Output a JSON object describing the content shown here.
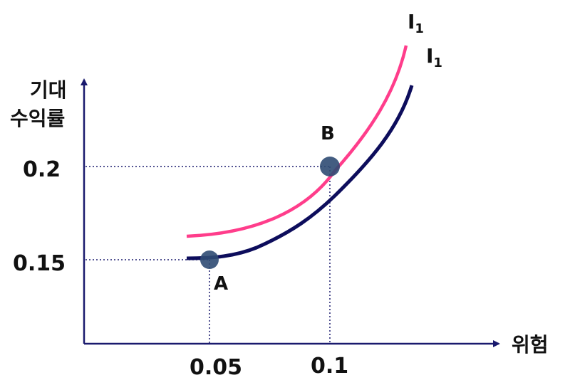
{
  "axes": {
    "y_label_line1": "기대",
    "y_label_line2": "수익률",
    "x_label": "위험",
    "y_ticks": [
      "0.2",
      "0.15"
    ],
    "x_ticks": [
      "0.05",
      "0.1"
    ],
    "color": "#1a1a6e"
  },
  "curves": [
    {
      "label": "I",
      "subscript": "1",
      "color": "#ff3d8b"
    },
    {
      "label": "I",
      "subscript": "1",
      "color": "#0d0d5c"
    }
  ],
  "points": [
    {
      "label": "A",
      "x": 0.05,
      "y": 0.15
    },
    {
      "label": "B",
      "x": 0.1,
      "y": 0.2
    }
  ],
  "point_color": "#2f4b73"
}
